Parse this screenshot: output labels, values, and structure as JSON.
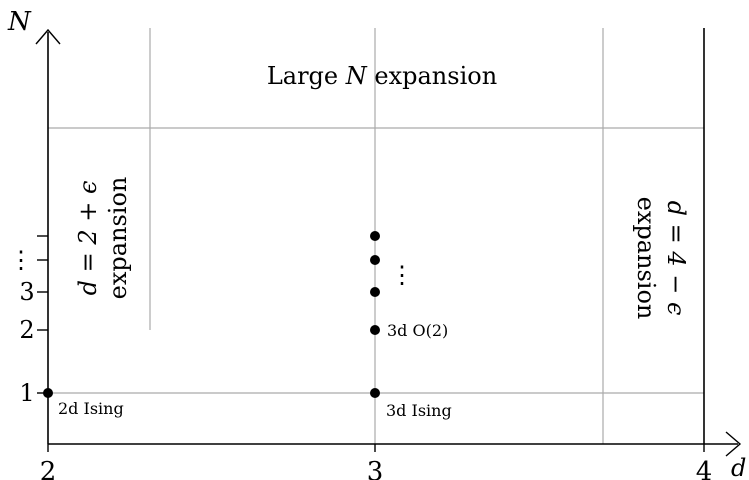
{
  "axes": {
    "y_label": "N",
    "x_label": "d",
    "x_ticks": [
      "2",
      "3",
      "4"
    ],
    "y_ticks": [
      "1",
      "2",
      "3",
      "⋮"
    ]
  },
  "regions": {
    "large_n": {
      "prefix": "Large ",
      "var": "N",
      "suffix": " expansion"
    },
    "d2": {
      "line1": "d = 2 + ϵ",
      "line2": "expansion"
    },
    "d4": {
      "line1": "d = 4 − ϵ",
      "line2": "expansion"
    }
  },
  "points": {
    "ising_2d": "2d Ising",
    "ising_3d": "3d Ising",
    "o2_3d": "3d O(2)",
    "vdots": "⋮"
  },
  "colors": {
    "grid": "#aaaaaa",
    "ink": "#000000"
  }
}
